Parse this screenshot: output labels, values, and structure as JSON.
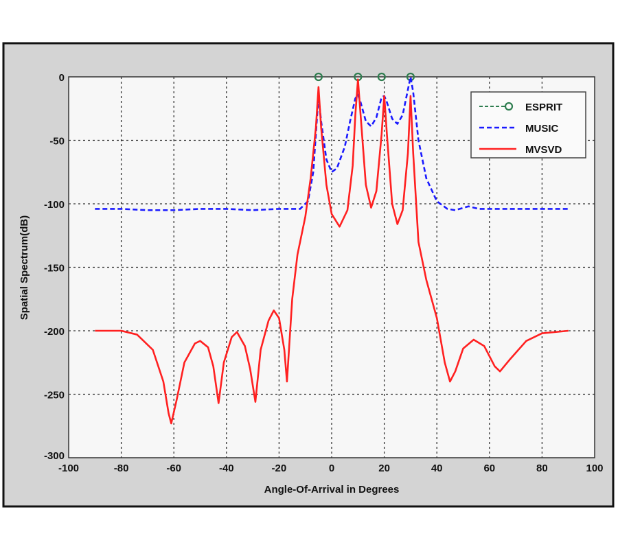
{
  "chart_data": {
    "type": "line",
    "title": "",
    "xlabel": "Angle-Of-Arrival in Degrees",
    "ylabel": "Spatial Spectrum(dB)",
    "xlim": [
      -100,
      100
    ],
    "ylim": [
      -300,
      0
    ],
    "xticks": [
      "-100",
      "-80",
      "-60",
      "-40",
      "-20",
      "0",
      "20",
      "40",
      "60",
      "80",
      "100"
    ],
    "yticks": [
      "0",
      "-50",
      "-100",
      "-150",
      "-200",
      "-250",
      "-300"
    ],
    "grid": true,
    "legend_position": "top-right",
    "series": [
      {
        "name": "ESPRIT",
        "color": "#2e7d4f",
        "style": "dashed-circle",
        "points": [
          [
            -5,
            0
          ],
          [
            10,
            0
          ],
          [
            19,
            0
          ],
          [
            30,
            0
          ]
        ]
      },
      {
        "name": "MUSIC",
        "color": "#1a1aff",
        "style": "dashed",
        "points": [
          [
            -90,
            -104
          ],
          [
            -80,
            -104
          ],
          [
            -70,
            -105
          ],
          [
            -60,
            -105
          ],
          [
            -50,
            -104
          ],
          [
            -40,
            -104
          ],
          [
            -30,
            -105
          ],
          [
            -20,
            -104
          ],
          [
            -12,
            -104
          ],
          [
            -9,
            -98
          ],
          [
            -7,
            -75
          ],
          [
            -6,
            -45
          ],
          [
            -5,
            -15
          ],
          [
            -4,
            -35
          ],
          [
            -2,
            -65
          ],
          [
            0,
            -75
          ],
          [
            2,
            -72
          ],
          [
            5,
            -55
          ],
          [
            7,
            -35
          ],
          [
            9,
            -17
          ],
          [
            10,
            -14
          ],
          [
            11,
            -20
          ],
          [
            13,
            -35
          ],
          [
            15,
            -39
          ],
          [
            17,
            -32
          ],
          [
            19,
            -16
          ],
          [
            20,
            -15
          ],
          [
            21,
            -20
          ],
          [
            23,
            -33
          ],
          [
            25,
            -37
          ],
          [
            27,
            -30
          ],
          [
            29,
            -10
          ],
          [
            30,
            0
          ],
          [
            31,
            -12
          ],
          [
            33,
            -50
          ],
          [
            36,
            -80
          ],
          [
            40,
            -98
          ],
          [
            44,
            -104
          ],
          [
            47,
            -105
          ],
          [
            52,
            -102
          ],
          [
            56,
            -104
          ],
          [
            70,
            -104
          ],
          [
            90,
            -104
          ]
        ]
      },
      {
        "name": "MVSVD",
        "color": "#ff2020",
        "style": "solid",
        "points": [
          [
            -90,
            -200
          ],
          [
            -80,
            -200
          ],
          [
            -74,
            -203
          ],
          [
            -68,
            -215
          ],
          [
            -64,
            -240
          ],
          [
            -62,
            -265
          ],
          [
            -61,
            -273
          ],
          [
            -59,
            -255
          ],
          [
            -56,
            -225
          ],
          [
            -52,
            -210
          ],
          [
            -50,
            -208
          ],
          [
            -47,
            -213
          ],
          [
            -45,
            -228
          ],
          [
            -43,
            -257
          ],
          [
            -41,
            -225
          ],
          [
            -38,
            -205
          ],
          [
            -36,
            -201
          ],
          [
            -33,
            -212
          ],
          [
            -31,
            -230
          ],
          [
            -29,
            -256
          ],
          [
            -27,
            -215
          ],
          [
            -24,
            -192
          ],
          [
            -22,
            -184
          ],
          [
            -20,
            -190
          ],
          [
            -18,
            -215
          ],
          [
            -17,
            -240
          ],
          [
            -15,
            -175
          ],
          [
            -13,
            -140
          ],
          [
            -10,
            -110
          ],
          [
            -8,
            -80
          ],
          [
            -6,
            -40
          ],
          [
            -5,
            -8
          ],
          [
            -4,
            -40
          ],
          [
            -2,
            -85
          ],
          [
            0,
            -108
          ],
          [
            3,
            -118
          ],
          [
            6,
            -105
          ],
          [
            8,
            -70
          ],
          [
            9,
            -30
          ],
          [
            10,
            -2
          ],
          [
            11,
            -30
          ],
          [
            13,
            -85
          ],
          [
            15,
            -103
          ],
          [
            17,
            -90
          ],
          [
            19,
            -45
          ],
          [
            20,
            -15
          ],
          [
            21,
            -45
          ],
          [
            23,
            -100
          ],
          [
            25,
            -116
          ],
          [
            27,
            -105
          ],
          [
            29,
            -60
          ],
          [
            30,
            -15
          ],
          [
            31,
            -60
          ],
          [
            33,
            -130
          ],
          [
            36,
            -160
          ],
          [
            40,
            -190
          ],
          [
            43,
            -225
          ],
          [
            45,
            -240
          ],
          [
            47,
            -232
          ],
          [
            50,
            -214
          ],
          [
            54,
            -207
          ],
          [
            58,
            -212
          ],
          [
            62,
            -228
          ],
          [
            64,
            -232
          ],
          [
            68,
            -222
          ],
          [
            74,
            -208
          ],
          [
            80,
            -202
          ],
          [
            90,
            -200
          ]
        ]
      }
    ]
  }
}
